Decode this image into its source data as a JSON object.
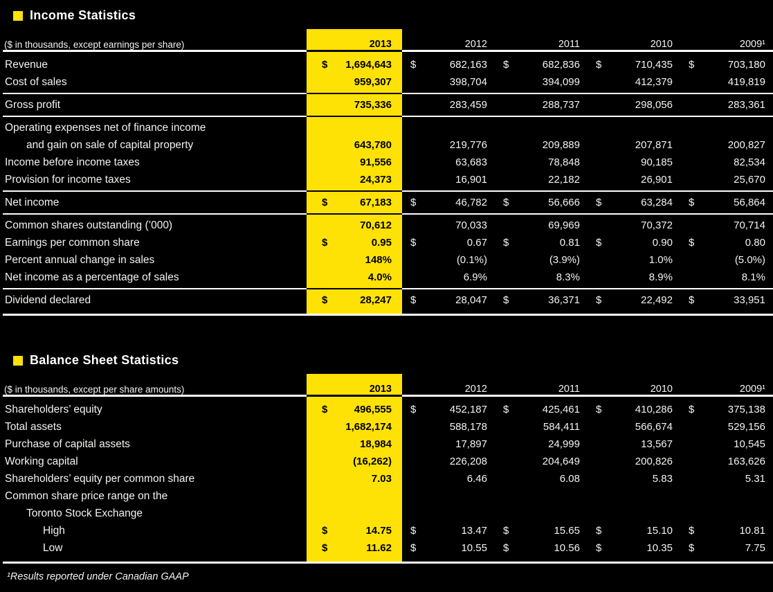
{
  "colors": {
    "accent": "#FFE205",
    "bg": "#000000",
    "text": "#F4F3EF",
    "line": "#FFFFFF"
  },
  "footnote": "¹Results reported under Canadian GAAP",
  "income": {
    "title": "Income Statistics",
    "subtitle": "($ in thousands, except earnings per share)",
    "currency": "$",
    "years": [
      "2013",
      "2012",
      "2011",
      "2010",
      "2009¹"
    ],
    "rows": [
      {
        "label": "Revenue",
        "dollar": true,
        "values": [
          "1,694,643",
          "682,163",
          "682,836",
          "710,435",
          "703,180"
        ]
      },
      {
        "label": "Cost of sales",
        "dollar": false,
        "values": [
          "959,307",
          "398,704",
          "394,099",
          "412,379",
          "419,819"
        ],
        "sep_after": true
      },
      {
        "label": "Gross profit",
        "dollar": false,
        "values": [
          "735,336",
          "283,459",
          "288,737",
          "298,056",
          "283,361"
        ],
        "sep_after": true
      },
      {
        "label": "Operating expenses net of finance income",
        "dollar": false,
        "values": [
          "",
          "",
          "",
          "",
          ""
        ]
      },
      {
        "label": "and gain on sale of capital property",
        "indent": 1,
        "dollar": false,
        "values": [
          "643,780",
          "219,776",
          "209,889",
          "207,871",
          "200,827"
        ]
      },
      {
        "label": "Income before income taxes",
        "dollar": false,
        "values": [
          "91,556",
          "63,683",
          "78,848",
          "90,185",
          "82,534"
        ]
      },
      {
        "label": "Provision for income taxes",
        "dollar": false,
        "values": [
          "24,373",
          "16,901",
          "22,182",
          "26,901",
          "25,670"
        ],
        "sep_after": true
      },
      {
        "label": "Net income",
        "dollar": true,
        "values": [
          "67,183",
          "46,782",
          "56,666",
          "63,284",
          "56,864"
        ],
        "sep_after": true
      },
      {
        "label": "Common shares outstanding (’000)",
        "dollar": false,
        "values": [
          "70,612",
          "70,033",
          "69,969",
          "70,372",
          "70,714"
        ]
      },
      {
        "label": "Earnings per common share",
        "dollar": true,
        "values": [
          "0.95",
          "0.67",
          "0.81",
          "0.90",
          "0.80"
        ]
      },
      {
        "label": "Percent annual change in sales",
        "dollar": false,
        "values": [
          "148%",
          "(0.1%)",
          "(3.9%)",
          "1.0%",
          "(5.0%)"
        ]
      },
      {
        "label": "Net income as a percentage of sales",
        "dollar": false,
        "values": [
          "4.0%",
          "6.9%",
          "8.3%",
          "8.9%",
          "8.1%"
        ],
        "sep_after": true
      },
      {
        "label": "Dividend declared",
        "dollar": true,
        "values": [
          "28,247",
          "28,047",
          "36,371",
          "22,492",
          "33,951"
        ]
      }
    ]
  },
  "balance": {
    "title": "Balance Sheet Statistics",
    "subtitle": "($ in thousands, except per share amounts)",
    "currency": "$",
    "years": [
      "2013",
      "2012",
      "2011",
      "2010",
      "2009¹"
    ],
    "rows": [
      {
        "label": "Shareholders’ equity",
        "dollar": true,
        "values": [
          "496,555",
          "452,187",
          "425,461",
          "410,286",
          "375,138"
        ]
      },
      {
        "label": "Total assets",
        "dollar": false,
        "values": [
          "1,682,174",
          "588,178",
          "584,411",
          "566,674",
          "529,156"
        ]
      },
      {
        "label": "Purchase of capital assets",
        "dollar": false,
        "values": [
          "18,984",
          "17,897",
          "24,999",
          "13,567",
          "10,545"
        ]
      },
      {
        "label": "Working capital",
        "dollar": false,
        "values": [
          "(16,262)",
          "226,208",
          "204,649",
          "200,826",
          "163,626"
        ]
      },
      {
        "label": "Shareholders’ equity per common share",
        "dollar": false,
        "values": [
          "7.03",
          "6.46",
          "6.08",
          "5.83",
          "5.31"
        ]
      },
      {
        "label": "Common share price range on the",
        "dollar": false,
        "values": [
          "",
          "",
          "",
          "",
          ""
        ]
      },
      {
        "label": "Toronto Stock Exchange",
        "indent": 1,
        "dollar": false,
        "values": [
          "",
          "",
          "",
          "",
          ""
        ]
      },
      {
        "label": "High",
        "indent": 2,
        "dollar": true,
        "values": [
          "14.75",
          "13.47",
          "15.65",
          "15.10",
          "10.81"
        ]
      },
      {
        "label": "Low",
        "indent": 2,
        "dollar": true,
        "values": [
          "11.62",
          "10.55",
          "10.56",
          "10.35",
          "7.75"
        ]
      }
    ]
  }
}
